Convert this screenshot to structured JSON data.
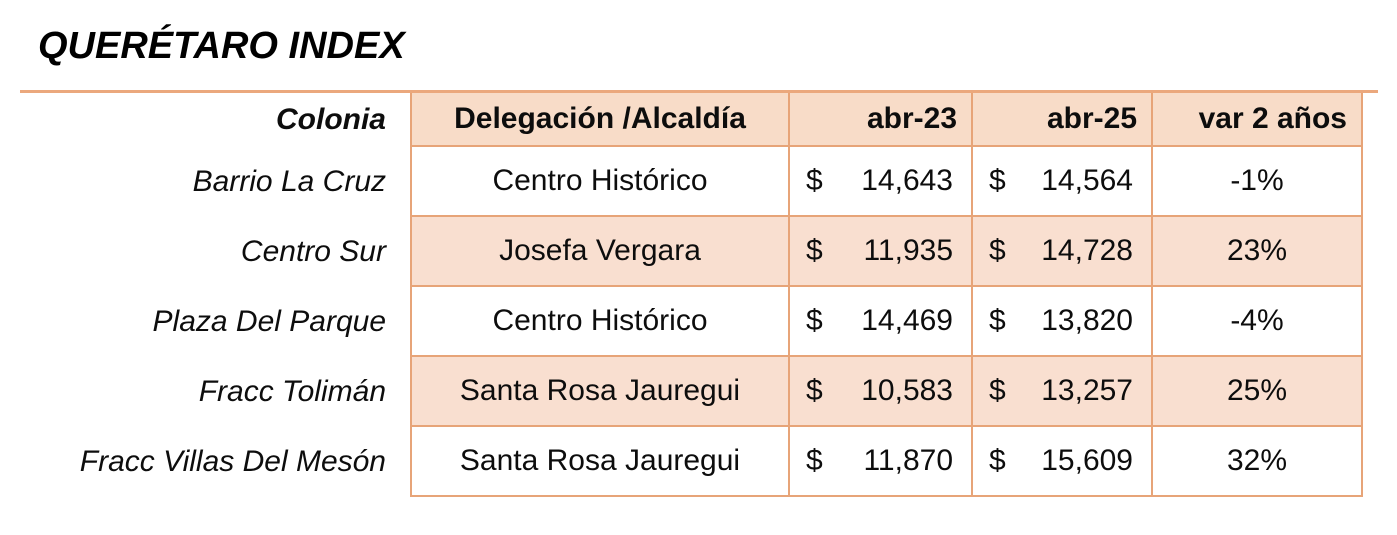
{
  "title": "QUERÉTARO INDEX",
  "colors": {
    "border": "#e7a478",
    "rule": "#eba87d",
    "header_fill": "#f8dcc8",
    "row_alt_fill": "#f9dfd0",
    "text": "#000000"
  },
  "table": {
    "currency_symbol": "$",
    "columns": [
      "Colonia",
      "Delegación /Alcaldía",
      "abr-23",
      "abr-25",
      "var 2 años"
    ],
    "rows": [
      {
        "colonia": "Barrio La Cruz",
        "delegacion": "Centro Histórico",
        "abr23": "14,643",
        "abr25": "14,564",
        "var": "-1%"
      },
      {
        "colonia": "Centro Sur",
        "delegacion": "Josefa Vergara",
        "abr23": "11,935",
        "abr25": "14,728",
        "var": "23%"
      },
      {
        "colonia": "Plaza Del Parque",
        "delegacion": "Centro Histórico",
        "abr23": "14,469",
        "abr25": "13,820",
        "var": "-4%"
      },
      {
        "colonia": "Fracc Tolimán",
        "delegacion": "Santa Rosa Jauregui",
        "abr23": "10,583",
        "abr25": "13,257",
        "var": "25%"
      },
      {
        "colonia": "Fracc Villas Del Mesón",
        "delegacion": "Santa Rosa Jauregui",
        "abr23": "11,870",
        "abr25": "15,609",
        "var": "32%"
      }
    ]
  },
  "chart_data": {
    "type": "table",
    "title": "QUERÉTARO INDEX",
    "columns": [
      "Colonia",
      "Delegación /Alcaldía",
      "abr-23",
      "abr-25",
      "var 2 años"
    ],
    "rows": [
      {
        "colonia": "Barrio La Cruz",
        "delegacion_alcaldia": "Centro Histórico",
        "abr_23": 14643,
        "abr_25": 14564,
        "var_2_anos_pct": -1
      },
      {
        "colonia": "Centro Sur",
        "delegacion_alcaldia": "Josefa Vergara",
        "abr_23": 11935,
        "abr_25": 14728,
        "var_2_anos_pct": 23
      },
      {
        "colonia": "Plaza Del Parque",
        "delegacion_alcaldia": "Centro Histórico",
        "abr_23": 14469,
        "abr_25": 13820,
        "var_2_anos_pct": -4
      },
      {
        "colonia": "Fracc Tolimán",
        "delegacion_alcaldia": "Santa Rosa Jauregui",
        "abr_23": 10583,
        "abr_25": 13257,
        "var_2_anos_pct": 25
      },
      {
        "colonia": "Fracc Villas Del Mesón",
        "delegacion_alcaldia": "Santa Rosa Jauregui",
        "abr_23": 11870,
        "abr_25": 15609,
        "var_2_anos_pct": 32
      }
    ],
    "currency": "$",
    "notes": "Alternating peach row shading on rows 2 and 4; first column unbordered and right-aligned italic."
  }
}
